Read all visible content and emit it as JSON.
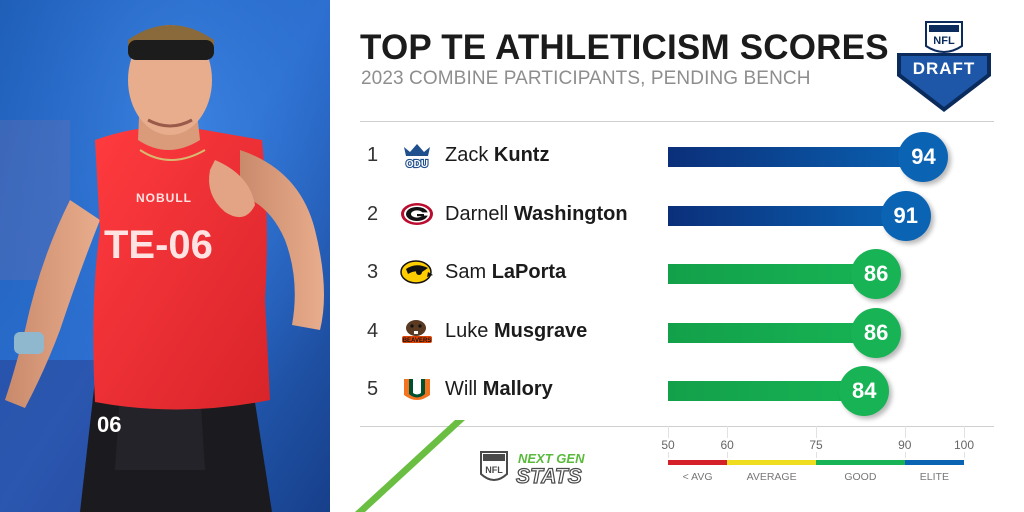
{
  "header": {
    "title": "TOP TE ATHLETICISM SCORES",
    "subtitle": "2023 COMBINE PARTICIPANTS, PENDING BENCH"
  },
  "logos": {
    "draft_logo_text": "DRAFT",
    "nfl_shield_text": "NFL",
    "next_gen_text": "NEXT GEN",
    "stats_text": "STATS"
  },
  "photo": {
    "jersey_text": "TE-06",
    "shirt_brand": "NOBULL",
    "shorts_number": "06"
  },
  "colors": {
    "elite": "#0a63b3",
    "good": "#17b354",
    "average": "#f1dd20",
    "below_avg": "#d42029",
    "title": "#1b1b1b",
    "subtitle": "#8e8e8e"
  },
  "chart_data": {
    "type": "bar",
    "title": "TOP TE ATHLETICISM SCORES",
    "subtitle": "2023 COMBINE PARTICIPANTS, PENDING BENCH",
    "xlim": [
      50,
      100
    ],
    "categories": [
      "Zack Kuntz",
      "Darnell Washington",
      "Sam LaPorta",
      "Luke Musgrave",
      "Will Mallory"
    ],
    "values": [
      94,
      91,
      86,
      86,
      84
    ],
    "rows": [
      {
        "rank": "1",
        "first": "Zack",
        "last": "Kuntz",
        "team_logo": "odu-monarchs-logo",
        "score": 94,
        "tier": "elite"
      },
      {
        "rank": "2",
        "first": "Darnell",
        "last": "Washington",
        "team_logo": "georgia-g-logo",
        "score": 91,
        "tier": "elite"
      },
      {
        "rank": "3",
        "first": "Sam",
        "last": "LaPorta",
        "team_logo": "iowa-hawkeye-logo",
        "score": 86,
        "tier": "good"
      },
      {
        "rank": "4",
        "first": "Luke",
        "last": "Musgrave",
        "team_logo": "oregon-state-beavers-logo",
        "score": 86,
        "tier": "good"
      },
      {
        "rank": "5",
        "first": "Will",
        "last": "Mallory",
        "team_logo": "miami-u-logo",
        "score": 84,
        "tier": "good"
      }
    ],
    "scale": {
      "ticks": [
        50,
        60,
        75,
        90,
        100
      ],
      "bands": [
        {
          "label": "< AVG",
          "from": 50,
          "to": 60,
          "color": "#d42029"
        },
        {
          "label": "AVERAGE",
          "from": 60,
          "to": 75,
          "color": "#f1dd20"
        },
        {
          "label": "GOOD",
          "from": 75,
          "to": 90,
          "color": "#17b354"
        },
        {
          "label": "ELITE",
          "from": 90,
          "to": 100,
          "color": "#0a63b3"
        }
      ]
    },
    "grid": false,
    "legend": "bottom-right"
  }
}
